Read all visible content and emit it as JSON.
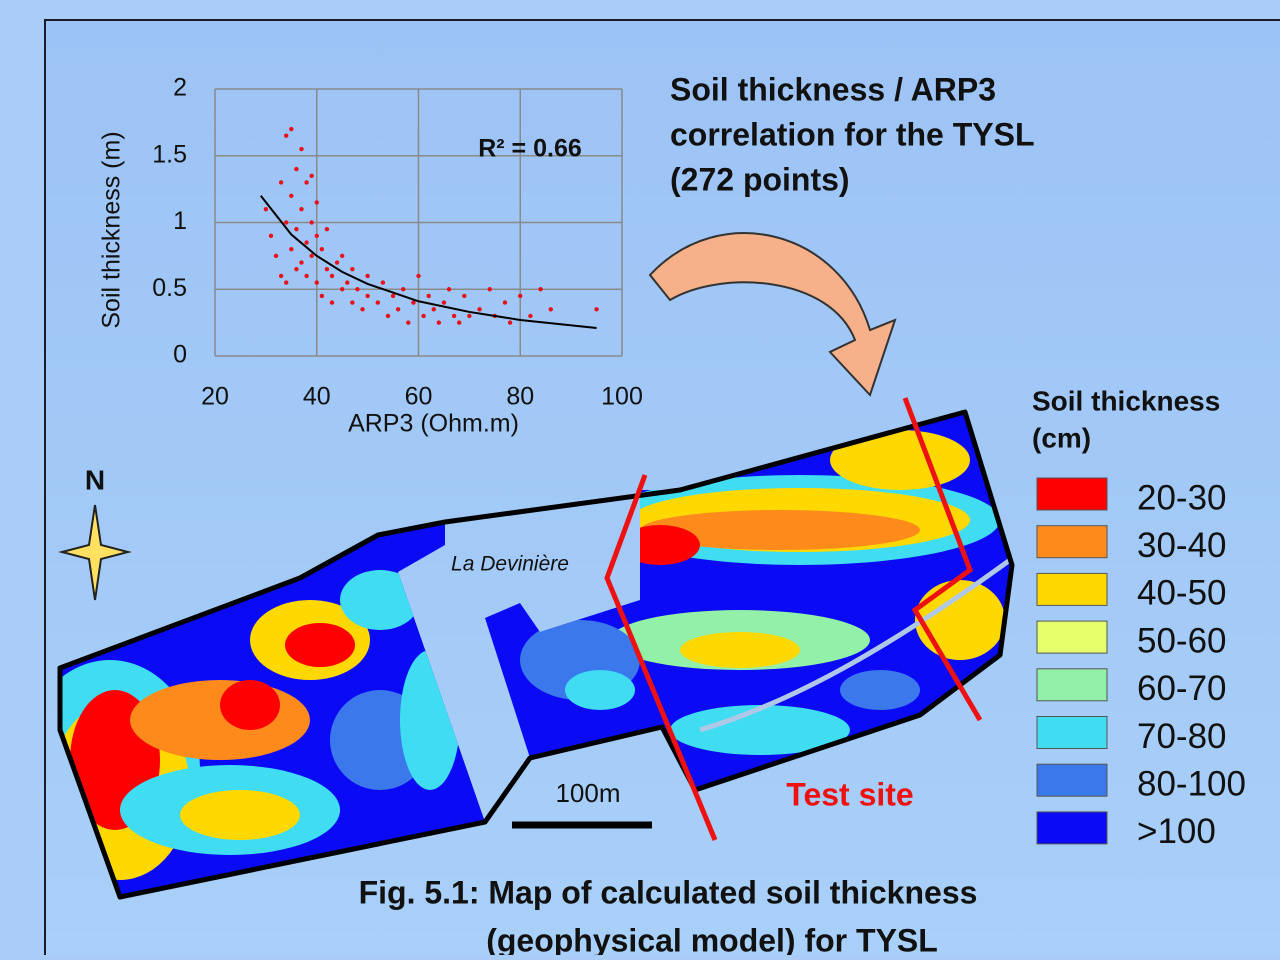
{
  "chart_data": {
    "type": "scatter",
    "title": [
      "Soil thickness / ARP3",
      "correlation for the TYSL",
      "(272 points)"
    ],
    "x_label": "ARP3 (Ohm.m)",
    "y_label": "Soil thickness (m)",
    "annotation": "R² = 0.66",
    "xlim": [
      20,
      100
    ],
    "xticks": [
      20,
      40,
      60,
      80,
      100
    ],
    "ylim": [
      0,
      2
    ],
    "yticks": [
      0,
      0.5,
      1,
      1.5,
      2
    ],
    "grid": true,
    "series": [
      {
        "mode": "markers",
        "color": "#e8101a",
        "x": [
          30,
          31,
          32,
          33,
          33,
          34,
          34,
          34,
          35,
          35,
          35,
          36,
          36,
          36,
          37,
          37,
          37,
          38,
          38,
          38,
          39,
          39,
          39,
          40,
          40,
          40,
          41,
          41,
          42,
          42,
          43,
          43,
          44,
          45,
          45,
          46,
          47,
          47,
          48,
          49,
          50,
          50,
          52,
          53,
          54,
          55,
          56,
          57,
          58,
          59,
          60,
          61,
          62,
          63,
          64,
          65,
          66,
          67,
          68,
          69,
          70,
          72,
          74,
          75,
          77,
          78,
          80,
          82,
          84,
          86,
          95
        ],
        "values": [
          1.1,
          0.9,
          0.75,
          1.3,
          0.6,
          1.65,
          1.0,
          0.55,
          1.2,
          0.8,
          1.7,
          1.4,
          0.95,
          0.65,
          1.55,
          1.1,
          0.7,
          1.3,
          0.85,
          0.6,
          1.0,
          1.35,
          0.75,
          0.9,
          0.55,
          1.15,
          0.8,
          0.45,
          0.65,
          0.95,
          0.6,
          0.4,
          0.7,
          0.5,
          0.75,
          0.55,
          0.4,
          0.65,
          0.5,
          0.35,
          0.6,
          0.45,
          0.4,
          0.55,
          0.3,
          0.45,
          0.35,
          0.5,
          0.25,
          0.4,
          0.6,
          0.3,
          0.45,
          0.35,
          0.25,
          0.4,
          0.5,
          0.3,
          0.25,
          0.45,
          0.3,
          0.35,
          0.5,
          0.3,
          0.4,
          0.25,
          0.45,
          0.3,
          0.5,
          0.35,
          0.35
        ]
      },
      {
        "mode": "line",
        "color": "#000000",
        "x": [
          29,
          35,
          40,
          45,
          50,
          60,
          70,
          80,
          95
        ],
        "values": [
          1.2,
          0.91,
          0.75,
          0.63,
          0.54,
          0.41,
          0.33,
          0.27,
          0.21
        ]
      }
    ]
  },
  "legend": {
    "title": [
      "Soil thickness",
      "(cm)"
    ],
    "items": [
      {
        "label": "20-30",
        "color": "#ff0000"
      },
      {
        "label": "30-40",
        "color": "#ff8a1c"
      },
      {
        "label": "40-50",
        "color": "#ffd800"
      },
      {
        "label": "50-60",
        "color": "#e4ff6a"
      },
      {
        "label": "60-70",
        "color": "#92f0a8"
      },
      {
        "label": "70-80",
        "color": "#3fdcf2"
      },
      {
        "label": "80-100",
        "color": "#3a78ec"
      },
      {
        "label": ">100",
        "color": "#0a0af5"
      }
    ]
  },
  "map": {
    "north": "N",
    "place": "La Devinière",
    "scale": "100m",
    "test_site": "Test site"
  },
  "caption": [
    "Fig. 5.1: Map of calculated soil thickness",
    "(geophysical model) for TYSL"
  ]
}
